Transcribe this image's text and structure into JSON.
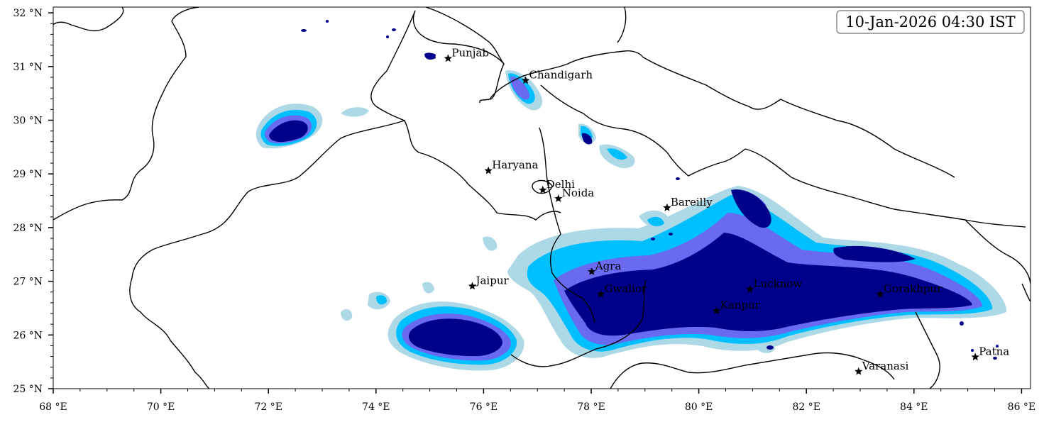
{
  "map": {
    "timestamp": "10-Jan-2026 04:30 IST",
    "colors": {
      "level1": "#add8e6",
      "level2": "#00bfff",
      "level3": "#6a6af0",
      "level4": "#00008b",
      "border": "#000000"
    },
    "lat_ticks": [
      {
        "label": "25 °N"
      },
      {
        "label": "26 °N"
      },
      {
        "label": "27 °N"
      },
      {
        "label": "28 °N"
      },
      {
        "label": "29 °N"
      },
      {
        "label": "30 °N"
      },
      {
        "label": "31 °N"
      },
      {
        "label": "32 °N"
      }
    ],
    "lon_ticks": [
      {
        "label": "68 °E"
      },
      {
        "label": "70 °E"
      },
      {
        "label": "72 °E"
      },
      {
        "label": "74 °E"
      },
      {
        "label": "76 °E"
      },
      {
        "label": "78 °E"
      },
      {
        "label": "80 °E"
      },
      {
        "label": "82 °E"
      },
      {
        "label": "84 °E"
      },
      {
        "label": "86 °E"
      }
    ],
    "cities": [
      {
        "name": "Punjab",
        "lon": 75.34,
        "lat": 31.15
      },
      {
        "name": "Chandigarh",
        "lon": 76.78,
        "lat": 30.74
      },
      {
        "name": "Haryana",
        "lon": 76.09,
        "lat": 29.06
      },
      {
        "name": "Delhi",
        "lon": 77.1,
        "lat": 28.7
      },
      {
        "name": "Noida",
        "lon": 77.39,
        "lat": 28.54
      },
      {
        "name": "Bareilly",
        "lon": 79.41,
        "lat": 28.37
      },
      {
        "name": "Agra",
        "lon": 78.01,
        "lat": 27.18
      },
      {
        "name": "Jaipur",
        "lon": 75.79,
        "lat": 26.91
      },
      {
        "name": "Gwalior",
        "lon": 78.18,
        "lat": 26.76
      },
      {
        "name": "Lucknow",
        "lon": 80.95,
        "lat": 26.85
      },
      {
        "name": "Kanpur",
        "lon": 80.33,
        "lat": 26.45
      },
      {
        "name": "Gorakhpur",
        "lon": 83.37,
        "lat": 26.76
      },
      {
        "name": "Varanasi",
        "lon": 82.97,
        "lat": 25.32
      },
      {
        "name": "Patna",
        "lon": 85.14,
        "lat": 25.59
      }
    ]
  }
}
